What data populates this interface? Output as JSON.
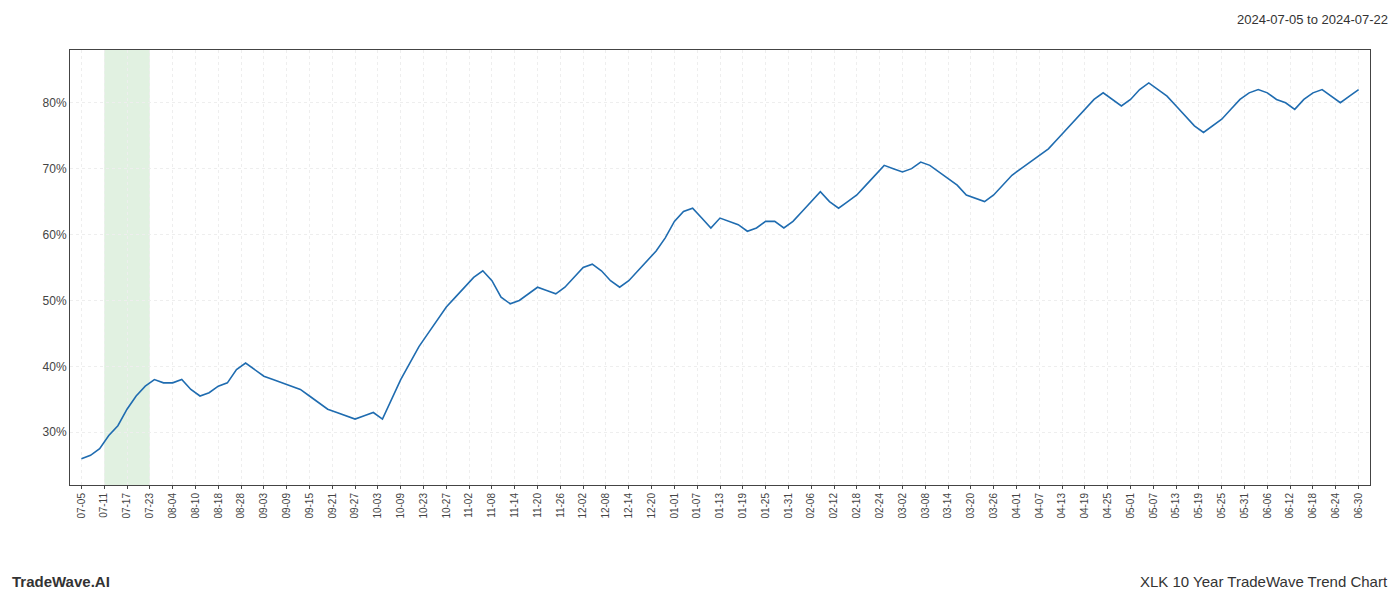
{
  "chart_data": {
    "type": "line",
    "title": "XLK 10 Year TradeWave Trend Chart",
    "subtitle": "2024-07-05 to 2024-07-22",
    "annotations": [
      "TradeWave.AI"
    ],
    "color": "#1f6cb0",
    "grid": true,
    "highlight": {
      "x": [
        1,
        3
      ],
      "color": "#c8e6c9"
    },
    "xlim": [
      -0.5,
      56.5
    ],
    "xticks": [
      {
        "value": 0,
        "label": "07-05"
      },
      {
        "value": 1,
        "label": "07-11"
      },
      {
        "value": 2,
        "label": "07-17"
      },
      {
        "value": 3,
        "label": "07-23"
      },
      {
        "value": 4,
        "label": "08-04"
      },
      {
        "value": 5,
        "label": "08-10"
      },
      {
        "value": 6,
        "label": "08-18"
      },
      {
        "value": 7,
        "label": "08-28"
      },
      {
        "value": 8,
        "label": "09-03"
      },
      {
        "value": 9,
        "label": "09-09"
      },
      {
        "value": 10,
        "label": "09-15"
      },
      {
        "value": 11,
        "label": "09-21"
      },
      {
        "value": 12,
        "label": "09-27"
      },
      {
        "value": 13,
        "label": "10-03"
      },
      {
        "value": 14,
        "label": "10-09"
      },
      {
        "value": 15,
        "label": "10-23"
      },
      {
        "value": 16,
        "label": "10-27"
      },
      {
        "value": 17,
        "label": "11-02"
      },
      {
        "value": 18,
        "label": "11-08"
      },
      {
        "value": 19,
        "label": "11-14"
      },
      {
        "value": 20,
        "label": "11-20"
      },
      {
        "value": 21,
        "label": "11-26"
      },
      {
        "value": 22,
        "label": "12-02"
      },
      {
        "value": 23,
        "label": "12-08"
      },
      {
        "value": 24,
        "label": "12-14"
      },
      {
        "value": 25,
        "label": "12-20"
      },
      {
        "value": 26,
        "label": "01-01"
      },
      {
        "value": 27,
        "label": "01-07"
      },
      {
        "value": 28,
        "label": "01-13"
      },
      {
        "value": 29,
        "label": "01-19"
      },
      {
        "value": 30,
        "label": "01-25"
      },
      {
        "value": 31,
        "label": "01-31"
      },
      {
        "value": 32,
        "label": "02-06"
      },
      {
        "value": 33,
        "label": "02-12"
      },
      {
        "value": 34,
        "label": "02-18"
      },
      {
        "value": 35,
        "label": "02-24"
      },
      {
        "value": 36,
        "label": "03-02"
      },
      {
        "value": 37,
        "label": "03-08"
      },
      {
        "value": 38,
        "label": "03-14"
      },
      {
        "value": 39,
        "label": "03-20"
      },
      {
        "value": 40,
        "label": "03-26"
      },
      {
        "value": 41,
        "label": "04-01"
      },
      {
        "value": 42,
        "label": "04-07"
      },
      {
        "value": 43,
        "label": "04-13"
      },
      {
        "value": 44,
        "label": "04-19"
      },
      {
        "value": 45,
        "label": "04-25"
      },
      {
        "value": 46,
        "label": "05-01"
      },
      {
        "value": 47,
        "label": "05-07"
      },
      {
        "value": 48,
        "label": "05-13"
      },
      {
        "value": 49,
        "label": "05-19"
      },
      {
        "value": 50,
        "label": "05-25"
      },
      {
        "value": 51,
        "label": "05-31"
      },
      {
        "value": 52,
        "label": "06-06"
      },
      {
        "value": 53,
        "label": "06-12"
      },
      {
        "value": 54,
        "label": "06-18"
      },
      {
        "value": 55,
        "label": "06-24"
      },
      {
        "value": 56,
        "label": "06-30"
      }
    ],
    "ylim": [
      22,
      88
    ],
    "yticks": [
      {
        "value": 30,
        "label": "30%"
      },
      {
        "value": 40,
        "label": "40%"
      },
      {
        "value": 50,
        "label": "50%"
      },
      {
        "value": 60,
        "label": "60%"
      },
      {
        "value": 70,
        "label": "70%"
      },
      {
        "value": 80,
        "label": "80%"
      }
    ],
    "x": [
      0,
      0.4,
      0.8,
      1.2,
      1.6,
      2,
      2.4,
      2.8,
      3.2,
      3.6,
      4,
      4.4,
      4.8,
      5.2,
      5.6,
      6,
      6.4,
      6.8,
      7.2,
      7.6,
      8,
      8.4,
      8.8,
      9.2,
      9.6,
      10,
      10.4,
      10.8,
      11.2,
      11.6,
      12,
      12.4,
      12.8,
      13.2,
      13.6,
      14,
      14.4,
      14.8,
      15.2,
      15.6,
      16,
      16.4,
      16.8,
      17.2,
      17.6,
      18,
      18.4,
      18.8,
      19.2,
      19.6,
      20,
      20.4,
      20.8,
      21.2,
      21.6,
      22,
      22.4,
      22.8,
      23.2,
      23.6,
      24,
      24.4,
      24.8,
      25.2,
      25.6,
      26,
      26.4,
      26.8,
      27.2,
      27.6,
      28,
      28.4,
      28.8,
      29.2,
      29.6,
      30,
      30.4,
      30.8,
      31.2,
      31.6,
      32,
      32.4,
      32.8,
      33.2,
      33.6,
      34,
      34.4,
      34.8,
      35.2,
      35.6,
      36,
      36.4,
      36.8,
      37.2,
      37.6,
      38,
      38.4,
      38.8,
      39.2,
      39.6,
      40,
      40.4,
      40.8,
      41.2,
      41.6,
      42,
      42.4,
      42.8,
      43.2,
      43.6,
      44,
      44.4,
      44.8,
      45.2,
      45.6,
      46,
      46.4,
      46.8,
      47.2,
      47.6,
      48,
      48.4,
      48.8,
      49.2,
      49.6,
      50,
      50.4,
      50.8,
      51.2,
      51.6,
      52,
      52.4,
      52.8,
      53.2,
      53.6,
      54,
      54.4,
      54.8,
      55.2,
      55.6,
      56
    ],
    "values": [
      26.0,
      26.5,
      27.5,
      29.5,
      31.0,
      33.5,
      35.5,
      37.0,
      38.0,
      37.5,
      37.5,
      38.0,
      36.5,
      35.5,
      36.0,
      37.0,
      37.5,
      39.5,
      40.5,
      39.5,
      38.5,
      38.0,
      37.5,
      37.0,
      36.5,
      35.5,
      34.5,
      33.5,
      33.0,
      32.5,
      32.0,
      32.5,
      33.0,
      32.0,
      35.0,
      38.0,
      40.5,
      43.0,
      45.0,
      47.0,
      49.0,
      50.5,
      52.0,
      53.5,
      54.5,
      53.0,
      50.5,
      49.5,
      50.0,
      51.0,
      52.0,
      51.5,
      51.0,
      52.0,
      53.5,
      55.0,
      55.5,
      54.5,
      53.0,
      52.0,
      53.0,
      54.5,
      56.0,
      57.5,
      59.5,
      62.0,
      63.5,
      64.0,
      62.5,
      61.0,
      62.5,
      62.0,
      61.5,
      60.5,
      61.0,
      62.0,
      62.0,
      61.0,
      62.0,
      63.5,
      65.0,
      66.5,
      65.0,
      64.0,
      65.0,
      66.0,
      67.5,
      69.0,
      70.5,
      70.0,
      69.5,
      70.0,
      71.0,
      70.5,
      69.5,
      68.5,
      67.5,
      66.0,
      65.5,
      65.0,
      66.0,
      67.5,
      69.0,
      70.0,
      71.0,
      72.0,
      73.0,
      74.5,
      76.0,
      77.5,
      79.0,
      80.5,
      81.5,
      80.5,
      79.5,
      80.5,
      82.0,
      83.0,
      82.0,
      81.0,
      79.5,
      78.0,
      76.5,
      75.5,
      76.5,
      77.5,
      79.0,
      80.5,
      81.5,
      82.0,
      81.5,
      80.5,
      80.0,
      79.0,
      80.5,
      81.5,
      82.0,
      81.0,
      80.0,
      81.0,
      82.0
    ]
  }
}
